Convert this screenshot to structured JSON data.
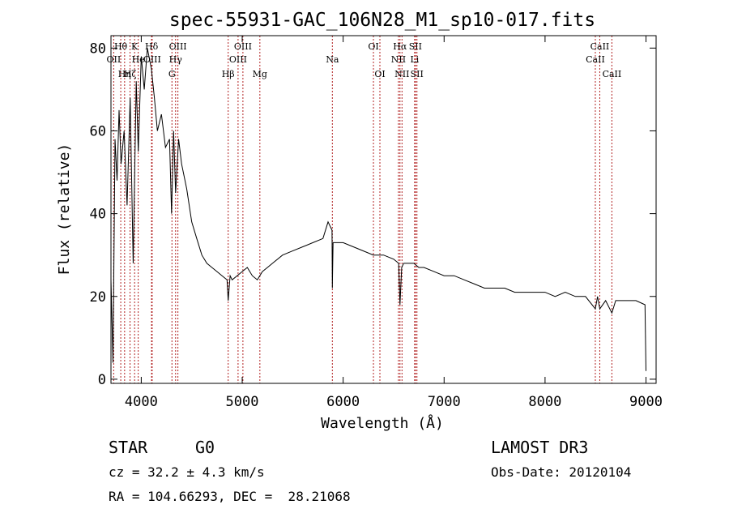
{
  "chart_data": {
    "type": "line",
    "title": "spec-55931-GAC_106N28_M1_sp10-017.fits",
    "xlabel": "Wavelength (Å)",
    "ylabel": "Flux (relative)",
    "xlim": [
      3700,
      9100
    ],
    "ylim": [
      -1,
      83
    ],
    "xticks": [
      4000,
      5000,
      6000,
      7000,
      8000,
      9000
    ],
    "yticks": [
      0,
      20,
      40,
      60,
      80
    ],
    "grid": false,
    "series": [
      {
        "name": "spectrum",
        "x": [
          3700,
          3720,
          3740,
          3760,
          3780,
          3800,
          3830,
          3860,
          3890,
          3920,
          3950,
          3970,
          4000,
          4030,
          4060,
          4100,
          4130,
          4160,
          4200,
          4240,
          4280,
          4300,
          4320,
          4340,
          4370,
          4400,
          4450,
          4500,
          4550,
          4600,
          4650,
          4700,
          4750,
          4800,
          4850,
          4861,
          4880,
          4900,
          4950,
          5000,
          5050,
          5100,
          5150,
          5200,
          5250,
          5300,
          5400,
          5500,
          5600,
          5700,
          5800,
          5850,
          5890,
          5893,
          5900,
          5950,
          6000,
          6100,
          6200,
          6300,
          6400,
          6500,
          6550,
          6563,
          6580,
          6600,
          6650,
          6700,
          6750,
          6800,
          6900,
          7000,
          7100,
          7200,
          7300,
          7400,
          7500,
          7600,
          7700,
          7800,
          7900,
          8000,
          8100,
          8200,
          8300,
          8400,
          8498,
          8520,
          8542,
          8600,
          8662,
          8700,
          8800,
          8900,
          8990,
          9000
        ],
        "values": [
          24,
          4,
          58,
          48,
          65,
          52,
          60,
          42,
          68,
          28,
          72,
          55,
          78,
          70,
          80,
          75,
          68,
          60,
          64,
          56,
          58,
          40,
          60,
          45,
          58,
          52,
          46,
          38,
          34,
          30,
          28,
          27,
          26,
          25,
          24,
          19,
          25,
          24,
          25,
          26,
          27,
          25,
          24,
          26,
          27,
          28,
          30,
          31,
          32,
          33,
          34,
          38,
          36,
          22,
          33,
          33,
          33,
          32,
          31,
          30,
          30,
          29,
          28,
          18,
          27,
          28,
          28,
          28,
          27,
          27,
          26,
          25,
          25,
          24,
          23,
          22,
          22,
          22,
          21,
          21,
          21,
          21,
          20,
          21,
          20,
          20,
          17,
          20,
          17,
          19,
          16,
          19,
          19,
          19,
          18,
          2
        ]
      }
    ],
    "lines": [
      {
        "name": "O II",
        "x": 3727,
        "label": "OII",
        "row": 2
      },
      {
        "name": "H theta",
        "x": 3797,
        "label": "Hθ",
        "row": 1
      },
      {
        "name": "H eta",
        "x": 3835,
        "label": "Hη",
        "row": 3
      },
      {
        "name": "H zeta",
        "x": 3889,
        "label": "Hζ",
        "row": 3
      },
      {
        "name": "K",
        "x": 3934,
        "label": "K",
        "row": 1
      },
      {
        "name": "H epsilon",
        "x": 3970,
        "label": "He",
        "row": 2
      },
      {
        "name": "H delta",
        "x": 4102,
        "label": "Hδ",
        "row": 1
      },
      {
        "name": "O III 4108",
        "x": 4108,
        "label": "OIII",
        "row": 2
      },
      {
        "name": "G",
        "x": 4304,
        "label": "G",
        "row": 3
      },
      {
        "name": "H gamma",
        "x": 4340,
        "label": "Hγ",
        "row": 2
      },
      {
        "name": "O III 4363",
        "x": 4363,
        "label": "OIII",
        "row": 1
      },
      {
        "name": "H beta",
        "x": 4861,
        "label": "Hβ",
        "row": 3
      },
      {
        "name": "O III 4959",
        "x": 4959,
        "label": "OIII",
        "row": 2
      },
      {
        "name": "O III 5007",
        "x": 5007,
        "label": "OIII",
        "row": 1
      },
      {
        "name": "Mg",
        "x": 5175,
        "label": "Mg",
        "row": 3
      },
      {
        "name": "Na",
        "x": 5893,
        "label": "Na",
        "row": 2
      },
      {
        "name": "O I 6300",
        "x": 6300,
        "label": "OI",
        "row": 1
      },
      {
        "name": "O I 6364",
        "x": 6364,
        "label": "OI",
        "row": 3
      },
      {
        "name": "N II 6548",
        "x": 6548,
        "label": "NII",
        "row": 2
      },
      {
        "name": "H alpha",
        "x": 6563,
        "label": "Hα",
        "row": 1
      },
      {
        "name": "N II 6583",
        "x": 6583,
        "label": "NII",
        "row": 3
      },
      {
        "name": "Li",
        "x": 6708,
        "label": "Li",
        "row": 2
      },
      {
        "name": "S II 6716",
        "x": 6716,
        "label": "SII",
        "row": 1
      },
      {
        "name": "S II 6731",
        "x": 6731,
        "label": "SII",
        "row": 3
      },
      {
        "name": "Ca II 8498",
        "x": 8498,
        "label": "CaII",
        "row": 2
      },
      {
        "name": "Ca II 8542",
        "x": 8542,
        "label": "CaII",
        "row": 1
      },
      {
        "name": "Ca II 8662",
        "x": 8662,
        "label": "CaII",
        "row": 3
      }
    ]
  },
  "info": {
    "class": "STAR",
    "subclass": "G0",
    "survey": "LAMOST DR3",
    "cz": "cz = 32.2 ± 4.3 km/s",
    "obs_date": "Obs-Date: 20120104",
    "coords": "RA = 104.66293, DEC =  28.21068"
  }
}
